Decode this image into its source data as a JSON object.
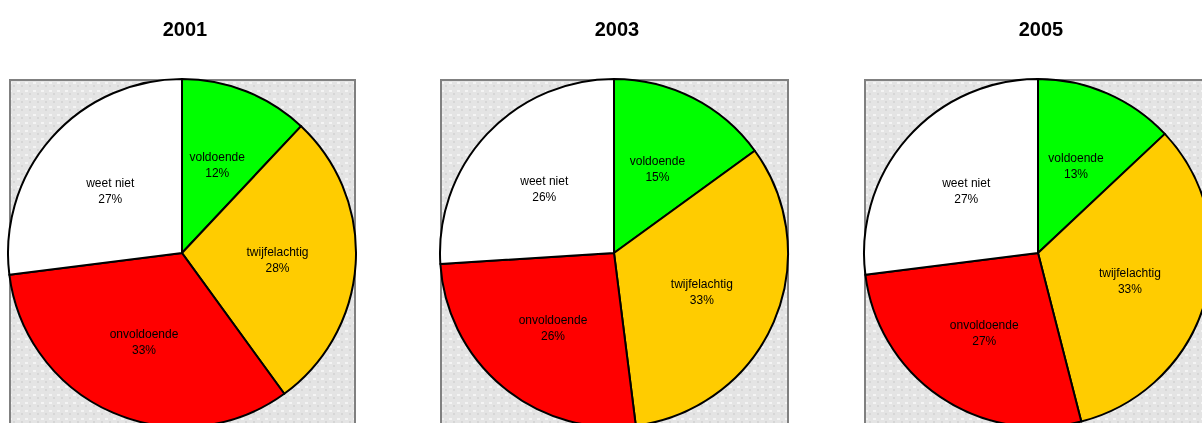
{
  "chart_data": [
    {
      "type": "pie",
      "title": "2001",
      "categories": [
        "voldoende",
        "twijfelachtig",
        "onvoldoende",
        "weet niet"
      ],
      "values": [
        12,
        28,
        33,
        27
      ],
      "value_labels": [
        "12%",
        "28%",
        "33%",
        "27%"
      ],
      "colors": [
        "#00ff00",
        "#ffcc00",
        "#ff0000",
        "#ffffff"
      ]
    },
    {
      "type": "pie",
      "title": "2003",
      "categories": [
        "voldoende",
        "twijfelachtig",
        "onvoldoende",
        "weet niet"
      ],
      "values": [
        15,
        33,
        26,
        26
      ],
      "value_labels": [
        "15%",
        "33%",
        "26%",
        "26%"
      ],
      "colors": [
        "#00ff00",
        "#ffcc00",
        "#ff0000",
        "#ffffff"
      ]
    },
    {
      "type": "pie",
      "title": "2005",
      "categories": [
        "voldoende",
        "twijfelachtig",
        "onvoldoende",
        "weet niet"
      ],
      "values": [
        13,
        33,
        27,
        27
      ],
      "value_labels": [
        "13%",
        "33%",
        "27%",
        "27%"
      ],
      "colors": [
        "#00ff00",
        "#ffcc00",
        "#ff0000",
        "#ffffff"
      ]
    }
  ]
}
